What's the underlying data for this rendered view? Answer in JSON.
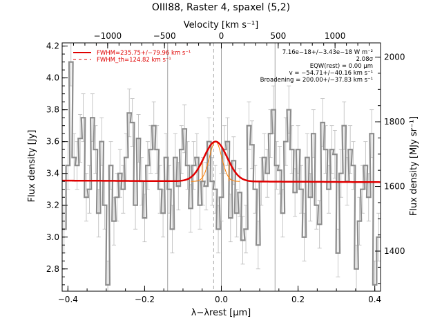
{
  "chart_data": {
    "type": "line",
    "title": "OIII88, Raster 4, spaxel (5,2)",
    "xlabel": "λ−λrest [µm]",
    "ylabel": "Flux density [Jy]",
    "y2label": "Flux density [MJy sr⁻¹]",
    "x2label": "Velocity [km s⁻¹]",
    "xlim": [
      -0.415,
      0.415
    ],
    "ylim": [
      2.66,
      4.22
    ],
    "y2lim": [
      1276,
      2044
    ],
    "x2lim": [
      -1400,
      1400
    ],
    "x_ticks": [
      -0.4,
      -0.2,
      0.0,
      0.2,
      0.4
    ],
    "x_tick_labels": [
      "−0.4",
      "−0.2",
      "0.0",
      "0.2",
      "0.4"
    ],
    "y_ticks": [
      2.8,
      3.0,
      3.2,
      3.4,
      3.6,
      3.8,
      4.0,
      4.2
    ],
    "y_tick_labels": [
      "2.8",
      "3.0",
      "3.2",
      "3.4",
      "3.6",
      "3.8",
      "4.0",
      "4.2"
    ],
    "y2_ticks": [
      1400,
      1600,
      1800,
      2000
    ],
    "y2_tick_labels": [
      "1400",
      "1600",
      "1800",
      "2000"
    ],
    "x2_ticks": [
      -1000,
      -500,
      0,
      500,
      1000
    ],
    "x2_tick_labels": [
      "−1000",
      "−500",
      "0",
      "500",
      "1000"
    ],
    "grid": false,
    "vlines_gray": [
      -0.14,
      0.14
    ],
    "vline_dashed": -0.02,
    "vline_center": 0.0,
    "legend": {
      "placement": "top-left",
      "entries": [
        "FWHM=235.75+/−79.96 km s⁻¹",
        "FWHM_th=124.82 km s⁻¹"
      ]
    },
    "annotations": [
      "7.16e−18+/−3.43e−18 W m⁻²",
      "2.08σ",
      "EQW(rest) = 0.00 µm",
      "v = −54.71+/−40.16 km s⁻¹",
      "Broadening = 200.00+/−37.83 km s⁻¹"
    ],
    "spectrum": {
      "x": [
        -0.41,
        -0.4,
        -0.392,
        -0.384,
        -0.376,
        -0.368,
        -0.36,
        -0.352,
        -0.344,
        -0.336,
        -0.328,
        -0.32,
        -0.312,
        -0.304,
        -0.296,
        -0.288,
        -0.28,
        -0.272,
        -0.264,
        -0.256,
        -0.248,
        -0.24,
        -0.232,
        -0.224,
        -0.216,
        -0.208,
        -0.2,
        -0.192,
        -0.184,
        -0.176,
        -0.168,
        -0.16,
        -0.152,
        -0.144,
        -0.136,
        -0.128,
        -0.12,
        -0.112,
        -0.104,
        -0.096,
        -0.088,
        -0.08,
        -0.072,
        -0.064,
        -0.056,
        -0.048,
        -0.04,
        -0.032,
        -0.024,
        -0.016,
        -0.008,
        0.0,
        0.008,
        0.016,
        0.024,
        0.032,
        0.04,
        0.048,
        0.056,
        0.064,
        0.072,
        0.08,
        0.088,
        0.096,
        0.104,
        0.112,
        0.12,
        0.128,
        0.136,
        0.144,
        0.152,
        0.16,
        0.168,
        0.176,
        0.184,
        0.192,
        0.2,
        0.208,
        0.216,
        0.224,
        0.232,
        0.24,
        0.248,
        0.256,
        0.264,
        0.272,
        0.28,
        0.288,
        0.296,
        0.304,
        0.312,
        0.32,
        0.328,
        0.336,
        0.344,
        0.352,
        0.36,
        0.368,
        0.376,
        0.384,
        0.392,
        0.4,
        0.41
      ],
      "y": [
        3.05,
        3.45,
        4.1,
        3.5,
        3.45,
        3.62,
        3.75,
        3.25,
        3.3,
        3.75,
        3.55,
        3.15,
        3.6,
        3.2,
        2.7,
        3.45,
        3.1,
        3.25,
        3.4,
        3.3,
        3.5,
        3.78,
        3.72,
        3.2,
        3.62,
        3.35,
        3.12,
        3.45,
        3.55,
        3.7,
        3.55,
        3.3,
        3.15,
        3.5,
        3.3,
        3.05,
        3.5,
        3.32,
        3.55,
        3.68,
        3.45,
        3.18,
        3.45,
        3.5,
        3.2,
        3.35,
        3.32,
        3.6,
        3.35,
        3.3,
        3.05,
        3.25,
        3.55,
        3.6,
        3.12,
        3.48,
        3.15,
        3.28,
        2.98,
        3.05,
        3.7,
        3.58,
        3.3,
        2.95,
        3.35,
        3.5,
        3.4,
        3.65,
        3.8,
        3.45,
        3.42,
        3.15,
        3.6,
        3.8,
        3.55,
        3.28,
        3.55,
        3.3,
        3.0,
        3.5,
        3.25,
        3.65,
        3.2,
        3.08,
        3.72,
        3.55,
        3.3,
        3.55,
        3.52,
        2.9,
        3.4,
        3.7,
        3.35,
        3.55,
        3.45,
        2.8,
        3.1,
        3.3,
        3.45,
        3.25,
        3.65,
        2.7,
        3.0
      ],
      "err": 0.15
    },
    "fit": {
      "baseline": 3.35,
      "baseline_slope": -0.012,
      "amplitude": 0.25,
      "center": -0.015,
      "sigma": 0.03
    },
    "thermal_profile": {
      "amplitude": 0.25,
      "center": -0.015,
      "sigma": 0.016
    },
    "colors": {
      "spectrum": "#8c8c8c",
      "errorbars": "#b8b8b8",
      "fit": "#e00000",
      "components": "#ff7f00",
      "vlines": "#a0a0a0",
      "dashed": "#a8a8a8"
    }
  }
}
